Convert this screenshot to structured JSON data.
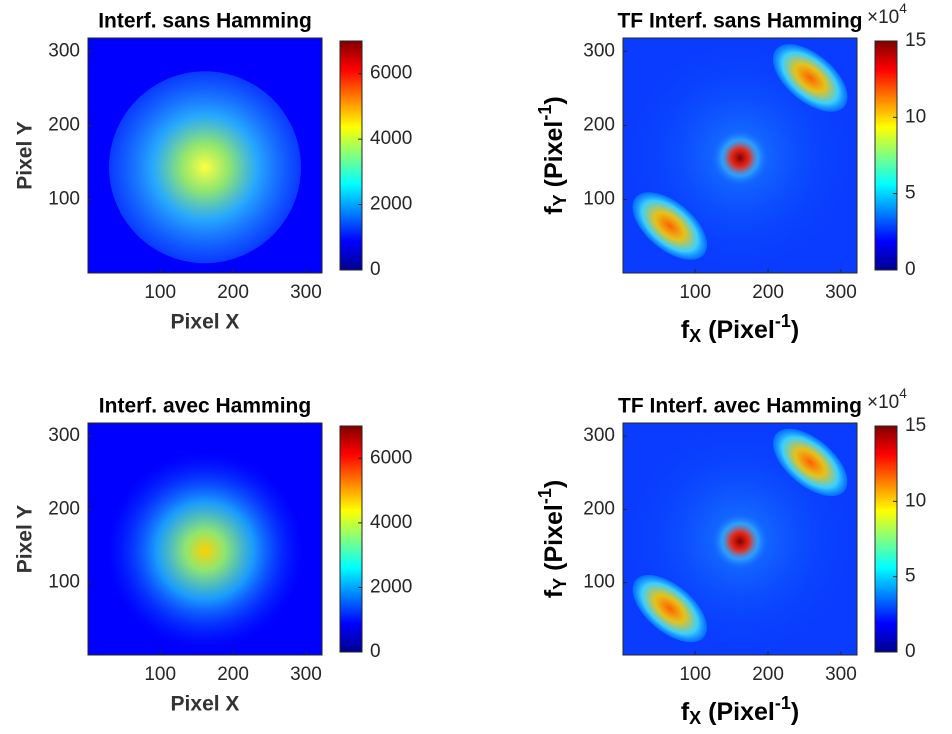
{
  "chart_data": [
    {
      "type": "heatmap",
      "title": "Interf. sans Hamming",
      "xlabel": "Pixel X",
      "ylabel": "Pixel Y",
      "xlim": [
        1,
        322
      ],
      "ylim": [
        1,
        318
      ],
      "xticks": [
        100,
        200,
        300
      ],
      "yticks": [
        100,
        200,
        300
      ],
      "colormap": "jet",
      "clim": [
        0,
        7000
      ],
      "cticks": [
        0,
        2000,
        4000,
        6000
      ]
    },
    {
      "type": "heatmap",
      "title": "TF Interf. sans Hamming",
      "xlabel": [
        "f",
        "X",
        " (Pixel",
        "-1",
        ")"
      ],
      "ylabel": [
        "f",
        "Y",
        " (Pixel",
        "-1",
        ")"
      ],
      "xlim": [
        1,
        322
      ],
      "ylim": [
        1,
        318
      ],
      "xticks": [
        100,
        200,
        300
      ],
      "yticks": [
        100,
        200,
        300
      ],
      "colormap": "jet",
      "clim": [
        0,
        15
      ],
      "cticks": [
        0,
        5,
        10,
        15
      ],
      "cscale": [
        "×10",
        "4"
      ]
    },
    {
      "type": "heatmap",
      "title": "Interf. avec Hamming",
      "xlabel": "Pixel X",
      "ylabel": "Pixel Y",
      "xlim": [
        1,
        322
      ],
      "ylim": [
        1,
        318
      ],
      "xticks": [
        100,
        200,
        300
      ],
      "yticks": [
        100,
        200,
        300
      ],
      "colormap": "jet",
      "clim": [
        0,
        7000
      ],
      "cticks": [
        0,
        2000,
        4000,
        6000
      ]
    },
    {
      "type": "heatmap",
      "title": "TF Interf. avec Hamming",
      "xlabel": [
        "f",
        "X",
        " (Pixel",
        "-1",
        ")"
      ],
      "ylabel": [
        "f",
        "Y",
        " (Pixel",
        "-1",
        ")"
      ],
      "xlim": [
        1,
        322
      ],
      "ylim": [
        1,
        318
      ],
      "xticks": [
        100,
        200,
        300
      ],
      "yticks": [
        100,
        200,
        300
      ],
      "colormap": "jet",
      "clim": [
        0,
        15
      ],
      "cticks": [
        0,
        5,
        10,
        15
      ],
      "cscale": [
        "×10",
        "4"
      ]
    }
  ]
}
